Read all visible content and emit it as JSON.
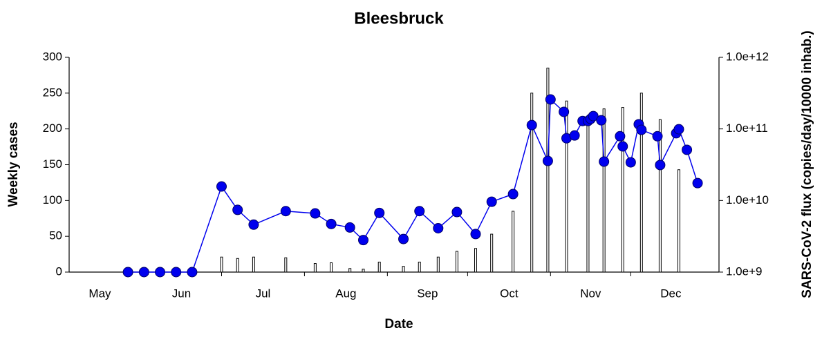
{
  "chart_data": {
    "type": "combo",
    "title": "Bleesbruck",
    "x_label": "Date",
    "y_label": "Weekly cases",
    "y2_label": "SARS-CoV-2 flux (copies/day/10000 inhab.)",
    "xlim": [
      4,
      247
    ],
    "xticks": [
      {
        "value": 0,
        "label": "May"
      },
      {
        "value": 31,
        "label": "Jun"
      },
      {
        "value": 61,
        "label": "Jul"
      },
      {
        "value": 92,
        "label": "Aug"
      },
      {
        "value": 123,
        "label": "Sep"
      },
      {
        "value": 153,
        "label": "Oct"
      },
      {
        "value": 184,
        "label": "Nov"
      },
      {
        "value": 214,
        "label": "Dec"
      }
    ],
    "ylim": [
      0,
      300
    ],
    "yticks": [
      0,
      50,
      100,
      150,
      200,
      250,
      300
    ],
    "y2lim": [
      1000000000,
      1000000000000
    ],
    "y2log": true,
    "y2ticks": [
      {
        "value": 1000000000,
        "label": "1.0e+9"
      },
      {
        "value": 10000000000,
        "label": "1.0e+10"
      },
      {
        "value": 100000000000,
        "label": "1.0e+11"
      },
      {
        "value": 1000000000000,
        "label": "1.0e+12"
      }
    ],
    "series": [
      {
        "type": "bar",
        "color": "#ffffff",
        "x": [
          61,
          67,
          73,
          85,
          96,
          102,
          109,
          114,
          120,
          129,
          135,
          142,
          149,
          156,
          162,
          170,
          177,
          183,
          190,
          198,
          204,
          211,
          218,
          225,
          232
        ],
        "values": [
          21,
          19,
          21,
          20,
          12,
          13,
          5,
          4,
          14,
          8,
          14,
          21,
          29,
          33,
          53,
          85,
          250,
          285,
          239,
          218,
          228,
          230,
          250,
          213,
          143
        ]
      },
      {
        "type": "line",
        "axis": "y2",
        "color": "#0000ee",
        "x": [
          26,
          32,
          38,
          44,
          50,
          61,
          67,
          73,
          85,
          96,
          102,
          109,
          114,
          120,
          129,
          135,
          142,
          149,
          156,
          162,
          170,
          177,
          183,
          184,
          189,
          190,
          193,
          196,
          198,
          199,
          200,
          203,
          204,
          210,
          211,
          214,
          217,
          218,
          224,
          225,
          231,
          232,
          235,
          239
        ],
        "values": [
          1000000000,
          1000000000,
          1000000000,
          1000000000,
          1000000000,
          15700000000,
          7400000000,
          4600000000,
          7100000000,
          6600000000,
          4700000000,
          4200000000,
          2800000000,
          6700000000,
          2900000000,
          7100000000,
          4100000000,
          6900000000,
          3400000000,
          9600000000,
          12300000000,
          113000000000,
          35700000000,
          258000000000,
          173000000000,
          74000000000,
          81000000000,
          129000000000,
          129000000000,
          138000000000,
          151000000000,
          132000000000,
          34900000000,
          79000000000,
          57000000000,
          34100000000,
          116000000000,
          97000000000,
          79000000000,
          31300000000,
          87000000000,
          99000000000,
          51000000000,
          17500000000
        ]
      }
    ]
  }
}
